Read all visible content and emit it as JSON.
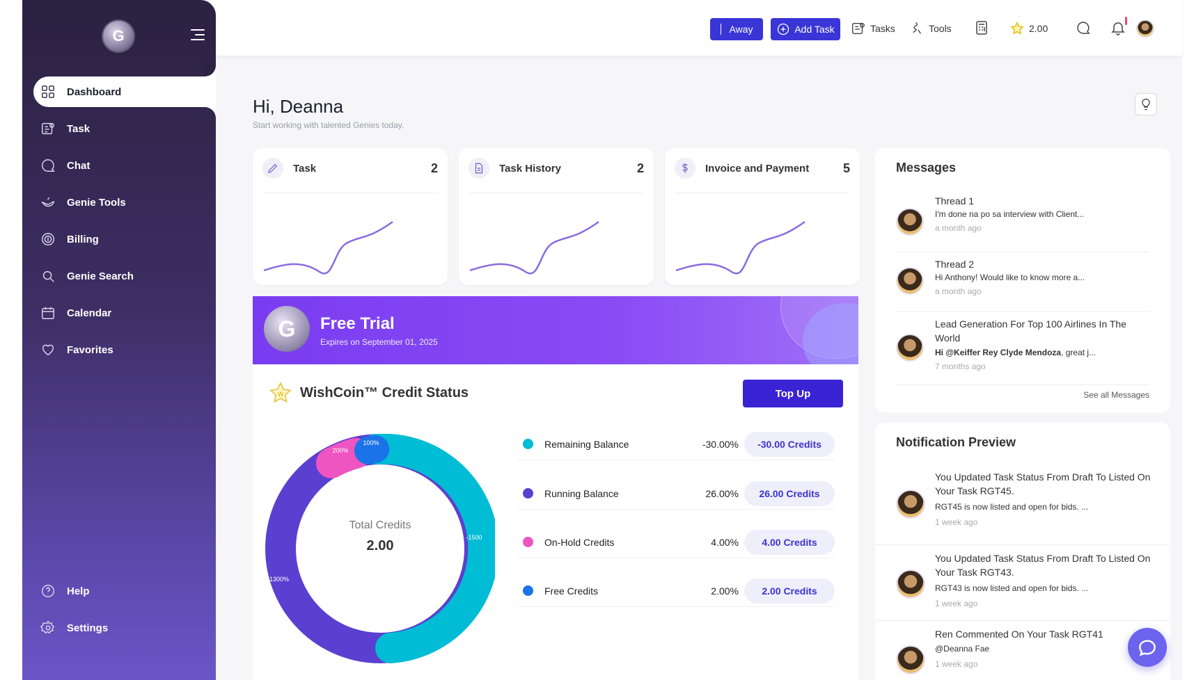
{
  "topbar": {
    "away_label": "Away",
    "add_task_label": "Add Task",
    "tasks_label": "Tasks",
    "tools_label": "Tools",
    "coins": "2.00"
  },
  "sidebar": {
    "items": [
      {
        "label": "Dashboard",
        "icon": "dashboard-icon"
      },
      {
        "label": "Task",
        "icon": "task-icon"
      },
      {
        "label": "Chat",
        "icon": "chat-icon"
      },
      {
        "label": "Genie Tools",
        "icon": "genie-lamp-icon"
      },
      {
        "label": "Billing",
        "icon": "billing-icon"
      },
      {
        "label": "Genie Search",
        "icon": "search-icon"
      },
      {
        "label": "Calendar",
        "icon": "calendar-icon"
      },
      {
        "label": "Favorites",
        "icon": "heart-icon"
      }
    ],
    "bottom": [
      {
        "label": "Help",
        "icon": "help-icon"
      },
      {
        "label": "Settings",
        "icon": "gear-icon"
      }
    ]
  },
  "greeting": {
    "title": "Hi, Deanna",
    "subtitle": "Start working with talented Genies today."
  },
  "stats": [
    {
      "title": "Task",
      "count": "2",
      "icon": "pencil-icon"
    },
    {
      "title": "Task History",
      "count": "2",
      "icon": "document-icon"
    },
    {
      "title": "Invoice and Payment",
      "count": "5",
      "icon": "dollar-icon"
    }
  ],
  "trial": {
    "title": "Free Trial",
    "subtitle": "Expires on September 01, 2025"
  },
  "credit": {
    "title": "WishCoin™ Credit Status",
    "topup_label": "Top Up",
    "total_label": "Total Credits",
    "total_value": "2.00",
    "legend": [
      {
        "name": "Remaining Balance",
        "pct": "-30.00%",
        "amount": "-30.00 Credits",
        "color": "#00bcd4"
      },
      {
        "name": "Running Balance",
        "pct": "26.00%",
        "amount": "26.00 Credits",
        "color": "#5b3fd0"
      },
      {
        "name": "On-Hold Credits",
        "pct": "4.00%",
        "amount": "4.00 Credits",
        "color": "#ee55c0"
      },
      {
        "name": "Free Credits",
        "pct": "2.00%",
        "amount": "2.00 Credits",
        "color": "#1a73e8"
      }
    ],
    "donut_labels": {
      "free": "100%",
      "onhold": "200%",
      "running": "1300%",
      "remaining": "-1500"
    }
  },
  "messages": {
    "title": "Messages",
    "see_all": "See all Messages",
    "items": [
      {
        "title": "Thread 1",
        "body": "I'm done na po sa interview with Client...",
        "time": "a month ago"
      },
      {
        "title": "Thread 2",
        "body": "Hi Anthony! Would like to know more a...",
        "time": "a month ago"
      },
      {
        "title": "Lead Generation For Top 100 Airlines In The World",
        "body_mention": "Hi @Keiffer Rey Clyde Mendoza",
        "body_rest": ", great j...",
        "time": "7 months ago"
      }
    ]
  },
  "notifications": {
    "title": "Notification Preview",
    "items": [
      {
        "title": "You Updated Task Status From Draft To Listed On Your Task RGT45.",
        "body": "RGT45 is now listed and open for bids. ...",
        "time": "1 week ago"
      },
      {
        "title": "You Updated Task Status From Draft To Listed On Your Task RGT43.",
        "body": "RGT43 is now listed and open for bids. ...",
        "time": "1 week ago"
      },
      {
        "title": "Ren Commented On Your Task RGT41",
        "body": "@Deanna Fae",
        "time": "1 week ago"
      }
    ]
  }
}
